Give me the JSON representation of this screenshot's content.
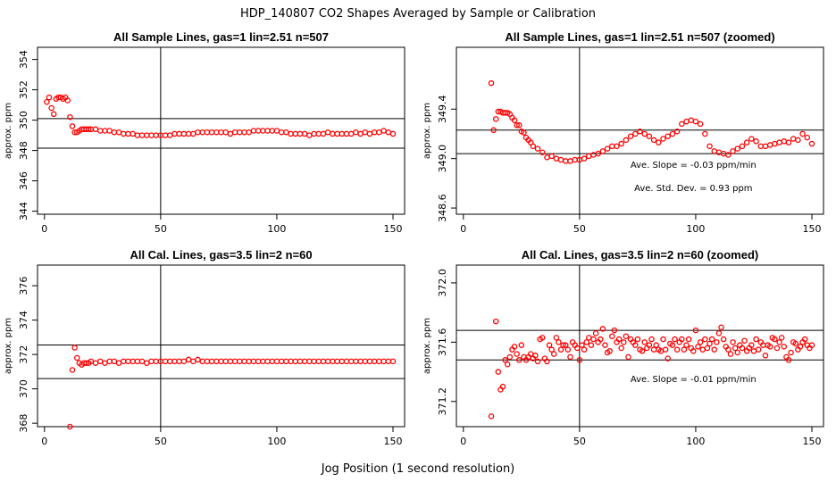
{
  "figure": {
    "title": "HDP_140807  CO2 Shapes Averaged by Sample or Calibration",
    "xlabel": "Jog Position (1 second resolution)"
  },
  "colors": {
    "points": "#ff0000",
    "lines": "#000000"
  },
  "chart_data": [
    {
      "type": "scatter",
      "title": "All Sample Lines, gas=1 lin=2.51 n=507",
      "ylabel": "approx. ppm",
      "xlim": [
        -3,
        155
      ],
      "ylim": [
        343.8,
        354.8
      ],
      "xticks": [
        "0",
        "50",
        "100",
        "150"
      ],
      "yticks": [
        "344",
        "346",
        "348",
        "350",
        "352",
        "354"
      ],
      "vline": 50,
      "hlines": [
        348.15,
        350.1
      ],
      "annotations": [],
      "x": [
        1,
        2,
        3,
        4,
        5,
        6,
        7,
        8,
        9,
        10,
        11,
        12,
        13,
        14,
        15,
        16,
        17,
        18,
        19,
        20,
        22,
        24,
        26,
        28,
        30,
        32,
        34,
        36,
        38,
        40,
        42,
        44,
        46,
        48,
        50,
        52,
        54,
        56,
        58,
        60,
        62,
        64,
        66,
        68,
        70,
        72,
        74,
        76,
        78,
        80,
        82,
        84,
        86,
        88,
        90,
        92,
        94,
        96,
        98,
        100,
        102,
        104,
        106,
        108,
        110,
        112,
        114,
        116,
        118,
        120,
        122,
        124,
        126,
        128,
        130,
        132,
        134,
        136,
        138,
        140,
        142,
        144,
        146,
        148,
        150
      ],
      "y": [
        351.2,
        351.5,
        350.8,
        350.4,
        351.4,
        351.5,
        351.5,
        351.4,
        351.5,
        351.3,
        350.2,
        349.6,
        349.2,
        349.2,
        349.3,
        349.4,
        349.4,
        349.4,
        349.4,
        349.4,
        349.4,
        349.3,
        349.3,
        349.3,
        349.2,
        349.2,
        349.1,
        349.1,
        349.1,
        349.0,
        349.0,
        349.0,
        349.0,
        349.0,
        349.0,
        349.0,
        349.0,
        349.1,
        349.1,
        349.1,
        349.1,
        349.1,
        349.2,
        349.2,
        349.2,
        349.2,
        349.2,
        349.2,
        349.2,
        349.1,
        349.2,
        349.2,
        349.2,
        349.2,
        349.3,
        349.3,
        349.3,
        349.3,
        349.3,
        349.3,
        349.2,
        349.2,
        349.1,
        349.1,
        349.1,
        349.1,
        349.0,
        349.1,
        349.1,
        349.1,
        349.2,
        349.1,
        349.1,
        349.1,
        349.1,
        349.1,
        349.2,
        349.1,
        349.2,
        349.1,
        349.2,
        349.2,
        349.3,
        349.2,
        349.1
      ]
    },
    {
      "type": "scatter",
      "title": "All Sample Lines, gas=1 lin=2.51 n=507 (zoomed)",
      "ylabel": "approx. ppm",
      "xlim": [
        -3,
        155
      ],
      "ylim": [
        348.55,
        349.9
      ],
      "xticks": [
        "0",
        "50",
        "100",
        "150"
      ],
      "yticks": [
        "348.6",
        "349.0",
        "349.4"
      ],
      "vline": 50,
      "hlines": [
        349.04,
        349.23
      ],
      "annotations": [
        "Ave. Slope =  -0.03  ppm/min",
        "Ave. Std. Dev. =  0.93  ppm"
      ],
      "x": [
        12,
        13,
        14,
        15,
        16,
        17,
        18,
        19,
        20,
        21,
        22,
        23,
        24,
        25,
        26,
        27,
        28,
        29,
        30,
        32,
        34,
        36,
        38,
        40,
        42,
        44,
        46,
        48,
        50,
        52,
        54,
        56,
        58,
        60,
        62,
        64,
        66,
        68,
        70,
        72,
        74,
        76,
        78,
        80,
        82,
        84,
        86,
        88,
        90,
        92,
        94,
        96,
        98,
        100,
        102,
        104,
        106,
        108,
        110,
        112,
        114,
        116,
        118,
        120,
        122,
        124,
        126,
        128,
        130,
        132,
        134,
        136,
        138,
        140,
        142,
        144,
        146,
        148,
        150
      ],
      "y": [
        349.61,
        349.23,
        349.32,
        349.38,
        349.38,
        349.37,
        349.37,
        349.37,
        349.36,
        349.33,
        349.31,
        349.27,
        349.27,
        349.22,
        349.21,
        349.17,
        349.15,
        349.13,
        349.1,
        349.08,
        349.05,
        349.01,
        349.02,
        349.0,
        348.99,
        348.98,
        348.98,
        348.99,
        348.99,
        349.0,
        349.02,
        349.03,
        349.04,
        349.06,
        349.08,
        349.1,
        349.1,
        349.12,
        349.15,
        349.18,
        349.2,
        349.22,
        349.2,
        349.18,
        349.15,
        349.13,
        349.16,
        349.18,
        349.2,
        349.22,
        349.28,
        349.3,
        349.31,
        349.3,
        349.28,
        349.2,
        349.1,
        349.06,
        349.05,
        349.04,
        349.03,
        349.06,
        349.08,
        349.1,
        349.13,
        349.16,
        349.14,
        349.1,
        349.1,
        349.11,
        349.12,
        349.13,
        349.14,
        349.13,
        349.16,
        349.15,
        349.2,
        349.17,
        349.12
      ]
    },
    {
      "type": "scatter",
      "title": "All Cal. Lines, gas=3.5 lin=2 n=60",
      "ylabel": "approx. ppm",
      "xlim": [
        -3,
        155
      ],
      "ylim": [
        367.8,
        377.2
      ],
      "xticks": [
        "0",
        "50",
        "100",
        "150"
      ],
      "yticks": [
        "368",
        "370",
        "372",
        "374",
        "376"
      ],
      "vline": 50,
      "hlines": [
        370.6,
        372.55
      ],
      "annotations": [],
      "x": [
        11,
        12,
        13,
        14,
        15,
        16,
        17,
        18,
        19,
        20,
        22,
        24,
        26,
        28,
        30,
        32,
        34,
        36,
        38,
        40,
        42,
        44,
        46,
        48,
        50,
        52,
        54,
        56,
        58,
        60,
        62,
        64,
        66,
        68,
        70,
        72,
        74,
        76,
        78,
        80,
        82,
        84,
        86,
        88,
        90,
        92,
        94,
        96,
        98,
        100,
        102,
        104,
        106,
        108,
        110,
        112,
        114,
        116,
        118,
        120,
        122,
        124,
        126,
        128,
        130,
        132,
        134,
        136,
        138,
        140,
        142,
        144,
        146,
        148,
        150
      ],
      "y": [
        367.8,
        371.1,
        372.4,
        371.8,
        371.5,
        371.4,
        371.5,
        371.5,
        371.5,
        371.6,
        371.5,
        371.6,
        371.5,
        371.6,
        371.6,
        371.5,
        371.6,
        371.6,
        371.6,
        371.6,
        371.6,
        371.5,
        371.6,
        371.6,
        371.6,
        371.6,
        371.6,
        371.6,
        371.6,
        371.6,
        371.7,
        371.6,
        371.7,
        371.6,
        371.6,
        371.6,
        371.6,
        371.6,
        371.6,
        371.6,
        371.6,
        371.6,
        371.6,
        371.6,
        371.6,
        371.6,
        371.6,
        371.6,
        371.6,
        371.6,
        371.6,
        371.6,
        371.6,
        371.6,
        371.6,
        371.6,
        371.6,
        371.6,
        371.6,
        371.6,
        371.6,
        371.6,
        371.6,
        371.6,
        371.6,
        371.6,
        371.6,
        371.6,
        371.6,
        371.6,
        371.6,
        371.6,
        371.6,
        371.6,
        371.6
      ]
    },
    {
      "type": "scatter",
      "title": "All Cal. Lines, gas=3.5 lin=2 n=60 (zoomed)",
      "ylabel": "approx. ppm",
      "xlim": [
        -3,
        155
      ],
      "ylim": [
        371.03,
        372.12
      ],
      "xticks": [
        "0",
        "50",
        "100",
        "150"
      ],
      "yticks": [
        "371.2",
        "371.6",
        "372.0"
      ],
      "vline": 50,
      "hlines": [
        371.48,
        371.68
      ],
      "annotations": [
        "Ave. Slope =  -0.01  ppm/min"
      ],
      "x": [
        12,
        14,
        15,
        16,
        17,
        18,
        19,
        20,
        21,
        22,
        23,
        24,
        25,
        26,
        27,
        28,
        29,
        30,
        31,
        32,
        33,
        34,
        35,
        36,
        37,
        38,
        39,
        40,
        41,
        42,
        43,
        44,
        45,
        46,
        47,
        48,
        49,
        50,
        51,
        52,
        53,
        54,
        55,
        56,
        57,
        58,
        59,
        60,
        61,
        62,
        63,
        64,
        65,
        66,
        67,
        68,
        69,
        70,
        71,
        72,
        73,
        74,
        75,
        76,
        77,
        78,
        79,
        80,
        81,
        82,
        83,
        84,
        85,
        86,
        87,
        88,
        89,
        90,
        91,
        92,
        93,
        94,
        95,
        96,
        97,
        98,
        99,
        100,
        101,
        102,
        103,
        104,
        105,
        106,
        107,
        108,
        109,
        110,
        111,
        112,
        113,
        114,
        115,
        116,
        117,
        118,
        119,
        120,
        121,
        122,
        123,
        124,
        125,
        126,
        127,
        128,
        129,
        130,
        131,
        132,
        133,
        134,
        135,
        136,
        137,
        138,
        139,
        140,
        141,
        142,
        143,
        144,
        145,
        146,
        147,
        148,
        149,
        150
      ],
      "y": [
        371.1,
        371.74,
        371.4,
        371.28,
        371.3,
        371.48,
        371.45,
        371.5,
        371.55,
        371.57,
        371.52,
        371.48,
        371.58,
        371.5,
        371.48,
        371.5,
        371.52,
        371.49,
        371.51,
        371.47,
        371.62,
        371.63,
        371.49,
        371.47,
        371.58,
        371.55,
        371.52,
        371.63,
        371.6,
        371.55,
        371.58,
        371.58,
        371.55,
        371.5,
        371.6,
        371.58,
        371.56,
        371.48,
        371.58,
        371.55,
        371.6,
        371.63,
        371.58,
        371.62,
        371.66,
        371.6,
        371.62,
        371.69,
        371.58,
        371.53,
        371.54,
        371.64,
        371.68,
        371.6,
        371.62,
        371.56,
        371.6,
        371.64,
        371.5,
        371.62,
        371.6,
        371.58,
        371.62,
        371.55,
        371.54,
        371.6,
        371.56,
        371.58,
        371.62,
        371.55,
        371.58,
        371.55,
        371.54,
        371.62,
        371.55,
        371.49,
        371.59,
        371.58,
        371.62,
        371.55,
        371.6,
        371.62,
        371.55,
        371.58,
        371.62,
        371.56,
        371.54,
        371.68,
        371.57,
        371.6,
        371.55,
        371.62,
        371.56,
        371.59,
        371.62,
        371.55,
        371.6,
        371.66,
        371.7,
        371.62,
        371.57,
        371.55,
        371.52,
        371.6,
        371.56,
        371.53,
        371.58,
        371.56,
        371.61,
        371.54,
        371.56,
        371.58,
        371.54,
        371.62,
        371.55,
        371.6,
        371.58,
        371.51,
        371.58,
        371.57,
        371.63,
        371.62,
        371.56,
        371.6,
        371.63,
        371.57,
        371.5,
        371.48,
        371.53,
        371.6,
        371.59,
        371.55,
        371.57,
        371.6,
        371.62,
        371.58,
        371.56,
        371.58
      ]
    }
  ]
}
